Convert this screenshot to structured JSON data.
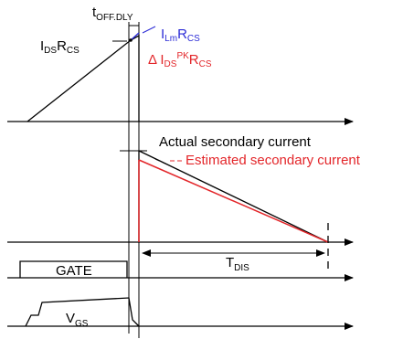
{
  "colors": {
    "ink": "#000000",
    "red": "#e3262a",
    "blue": "#2b2bd6"
  },
  "labels": {
    "t_off_dly": {
      "main": "t",
      "sub": "OFF.DLY"
    },
    "ids_rcs": {
      "i": "I",
      "i_sub": "DS",
      "r": "R",
      "r_sub": "CS"
    },
    "ilm_rcs": {
      "i": "I",
      "i_sub": "Lm",
      "r": "R",
      "r_sub": "CS"
    },
    "delta_ids_pk_rcs": {
      "delta": "Δ ",
      "i": "I",
      "i_sub": "DS",
      "i_sup": "PK",
      "r": "R",
      "r_sub": "CS"
    },
    "actual": "Actual secondary current",
    "estimated": "Estimated secondary current",
    "t_dis": {
      "main": "T",
      "sub": "DIS"
    },
    "gate": "GATE",
    "vgs": {
      "main": "V",
      "sub": "GS"
    }
  }
}
